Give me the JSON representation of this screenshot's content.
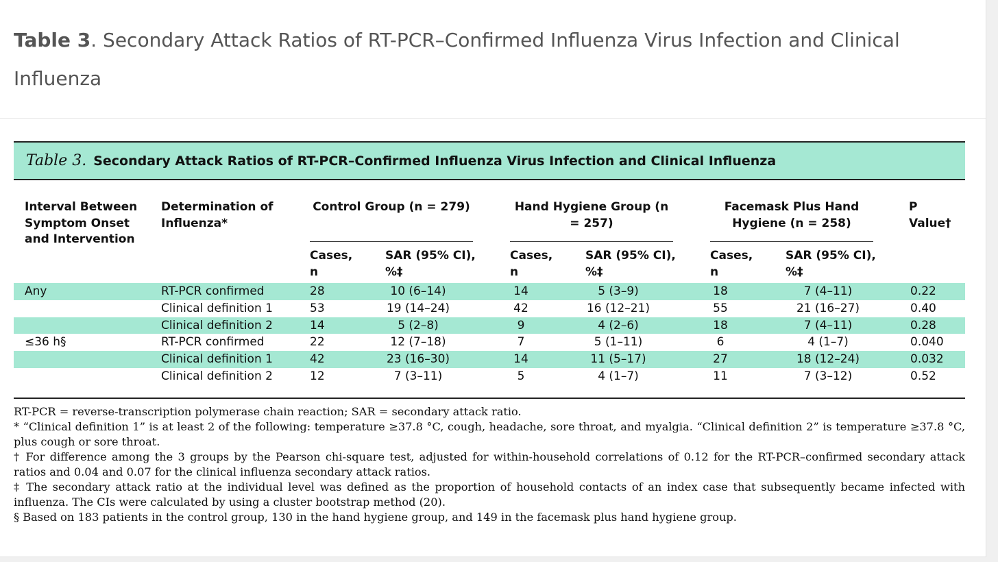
{
  "heading": {
    "bold": "Table 3",
    "rest": ". Secondary Attack Ratios of RT-PCR–Confirmed Influenza Virus Infection and Clinical Influenza"
  },
  "table": {
    "label": "Table 3.",
    "title": "Secondary Attack Ratios of RT-PCR–Confirmed Influenza Virus Infection and Clinical Influenza",
    "headers": {
      "interval": "Interval Between Symptom Onset and Intervention",
      "determination": "Determination of Influenza*",
      "control": "Control Group (n = 279)",
      "hand": "Hand Hygiene Group (n = 257)",
      "facemask": "Facemask Plus Hand Hygiene (n = 258)",
      "pvalue": "P Value†",
      "cases": "Cases, n",
      "sar": "SAR (95% CI), %‡"
    },
    "rows": [
      {
        "interval": "Any",
        "determination": "RT-PCR confirmed",
        "c_cases": "28",
        "c_sar": "10 (6–14)",
        "h_cases": "14",
        "h_sar": "5 (3–9)",
        "f_cases": "18",
        "f_sar": "7 (4–11)",
        "p": "0.22"
      },
      {
        "interval": "",
        "determination": "Clinical definition 1",
        "c_cases": "53",
        "c_sar": "19 (14–24)",
        "h_cases": "42",
        "h_sar": "16 (12–21)",
        "f_cases": "55",
        "f_sar": "21 (16–27)",
        "p": "0.40"
      },
      {
        "interval": "",
        "determination": "Clinical definition 2",
        "c_cases": "14",
        "c_sar": "5 (2–8)",
        "h_cases": "9",
        "h_sar": "4 (2–6)",
        "f_cases": "18",
        "f_sar": "7 (4–11)",
        "p": "0.28"
      },
      {
        "interval": "≤36 h§",
        "determination": "RT-PCR confirmed",
        "c_cases": "22",
        "c_sar": "12 (7–18)",
        "h_cases": "7",
        "h_sar": "5 (1–11)",
        "f_cases": "6",
        "f_sar": "4 (1–7)",
        "p": "0.040"
      },
      {
        "interval": "",
        "determination": "Clinical definition 1",
        "c_cases": "42",
        "c_sar": "23 (16–30)",
        "h_cases": "14",
        "h_sar": "11 (5–17)",
        "f_cases": "27",
        "f_sar": "18 (12–24)",
        "p": "0.032"
      },
      {
        "interval": "",
        "determination": "Clinical definition 2",
        "c_cases": "12",
        "c_sar": "7 (3–11)",
        "h_cases": "5",
        "h_sar": "4 (1–7)",
        "f_cases": "11",
        "f_sar": "7 (3–12)",
        "p": "0.52"
      }
    ],
    "footnotes": [
      "RT-PCR = reverse-transcription polymerase chain reaction; SAR = secondary attack ratio.",
      "* “Clinical definition 1” is at least 2 of the following: temperature ≥37.8 °C, cough, headache, sore throat, and myalgia. “Clinical definition 2” is temperature ≥37.8 °C, plus cough or sore throat.",
      "† For difference among the 3 groups by the Pearson chi-square test, adjusted for within-household correlations of 0.12 for the RT-PCR–confirmed secondary attack ratios and 0.04 and 0.07 for the clinical influenza secondary attack ratios.",
      "‡ The secondary attack ratio at the individual level was defined as the proportion of household contacts of an index case that subsequently became infected with influenza. The CIs were calculated by using a cluster bootstrap method (20).",
      "§ Based on 183 patients in the control group, 130 in the hand hygiene group, and 149 in the facemask plus hand hygiene group."
    ]
  },
  "colors": {
    "accent_row": "#a5e8d3",
    "heading_text": "#555555"
  }
}
